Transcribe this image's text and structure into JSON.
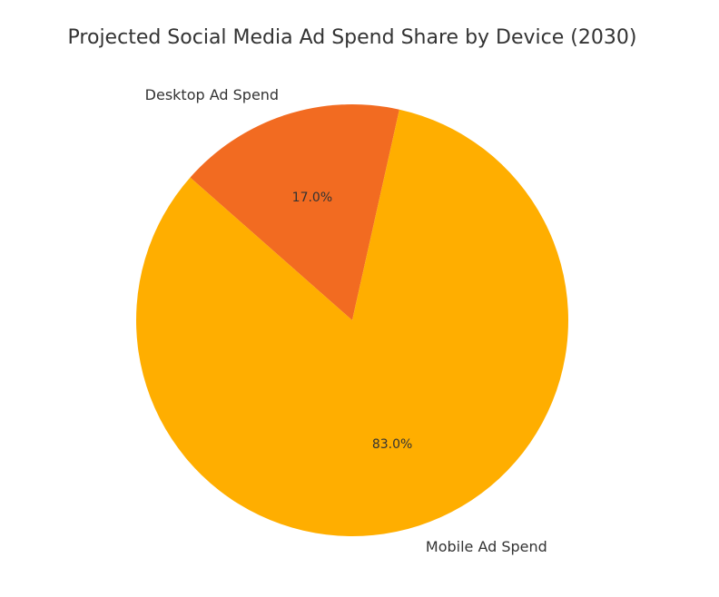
{
  "chart_data": {
    "type": "pie",
    "title": "Projected Social Media Ad Spend Share by Device (2030)",
    "slices": [
      {
        "label": "Desktop Ad Spend",
        "value": 17.0,
        "pct_label": "17.0%",
        "color": "#f26b21"
      },
      {
        "label": "Mobile Ad Spend",
        "value": 83.0,
        "pct_label": "83.0%",
        "color": "#ffae00"
      }
    ],
    "legend": "none"
  }
}
